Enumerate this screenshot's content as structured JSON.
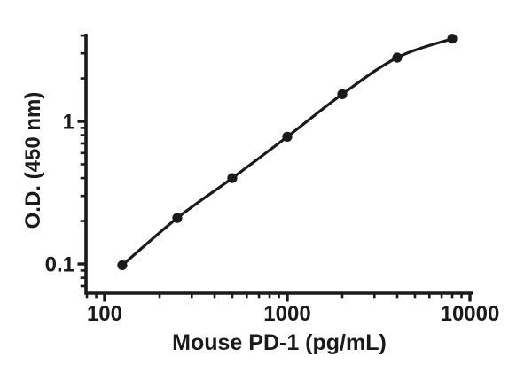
{
  "figure": {
    "background": "#ffffff",
    "ink_color": "#1a1a1a"
  },
  "chart_data": {
    "type": "scatter",
    "title": "",
    "xlabel": "Mouse PD-1 (pg/mL)",
    "ylabel": "O.D. (450 nm)",
    "x_scale": "log10",
    "y_scale": "log10",
    "grid": false,
    "legend": null,
    "fit_line": true,
    "marker_color": "#1a1a1a",
    "line_color": "#1a1a1a",
    "points": {
      "x_pg_ml": [
        125,
        250,
        500,
        1000,
        2000,
        4000,
        8000
      ],
      "od_450nm": [
        0.098,
        0.21,
        0.4,
        0.78,
        1.55,
        2.8,
        3.8
      ]
    },
    "axes": {
      "xlim": [
        79.1,
        10341
      ],
      "ylim": [
        0.0624,
        4.121
      ],
      "x_major_ticks": [
        {
          "value": 100,
          "label": "100"
        },
        {
          "value": 1000,
          "label": "1000"
        },
        {
          "value": 10000,
          "label": "10000"
        }
      ],
      "x_minor_ticks": [
        80,
        90,
        200,
        300,
        400,
        500,
        600,
        700,
        800,
        900,
        2000,
        3000,
        4000,
        5000,
        6000,
        7000,
        8000,
        9000
      ],
      "y_major_ticks": [
        {
          "value": 1,
          "label": "1"
        },
        {
          "value": 0.1,
          "label": "0.1"
        }
      ],
      "y_minor_ticks": [
        4,
        3,
        2,
        0.9,
        0.8,
        0.7,
        0.6,
        0.5,
        0.4,
        0.3,
        0.2,
        0.09,
        0.08,
        0.07
      ]
    }
  }
}
